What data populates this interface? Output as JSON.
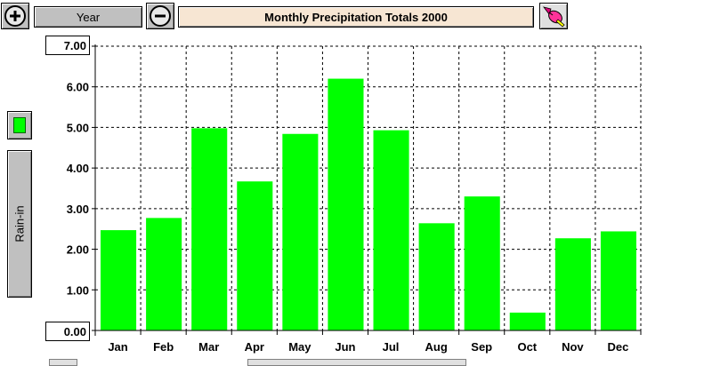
{
  "toolbar": {
    "period_label": "Year",
    "title": "Monthly Precipitation Totals 2000"
  },
  "sidebar": {
    "series_label": "Rain-in",
    "series_color": "#00ff00"
  },
  "chart_data": {
    "type": "bar",
    "categories": [
      "Jan",
      "Feb",
      "Mar",
      "Apr",
      "May",
      "Jun",
      "Jul",
      "Aug",
      "Sep",
      "Oct",
      "Nov",
      "Dec"
    ],
    "values": [
      2.47,
      2.77,
      4.98,
      3.67,
      4.84,
      6.2,
      4.93,
      2.64,
      3.3,
      0.44,
      2.27,
      2.44
    ],
    "ylabel": "Rain-in",
    "ylim": [
      0,
      7
    ],
    "yticks": [
      "0.00",
      "1.00",
      "2.00",
      "3.00",
      "4.00",
      "5.00",
      "6.00",
      "7.00"
    ],
    "grid": true,
    "bar_color": "#00ff00"
  }
}
